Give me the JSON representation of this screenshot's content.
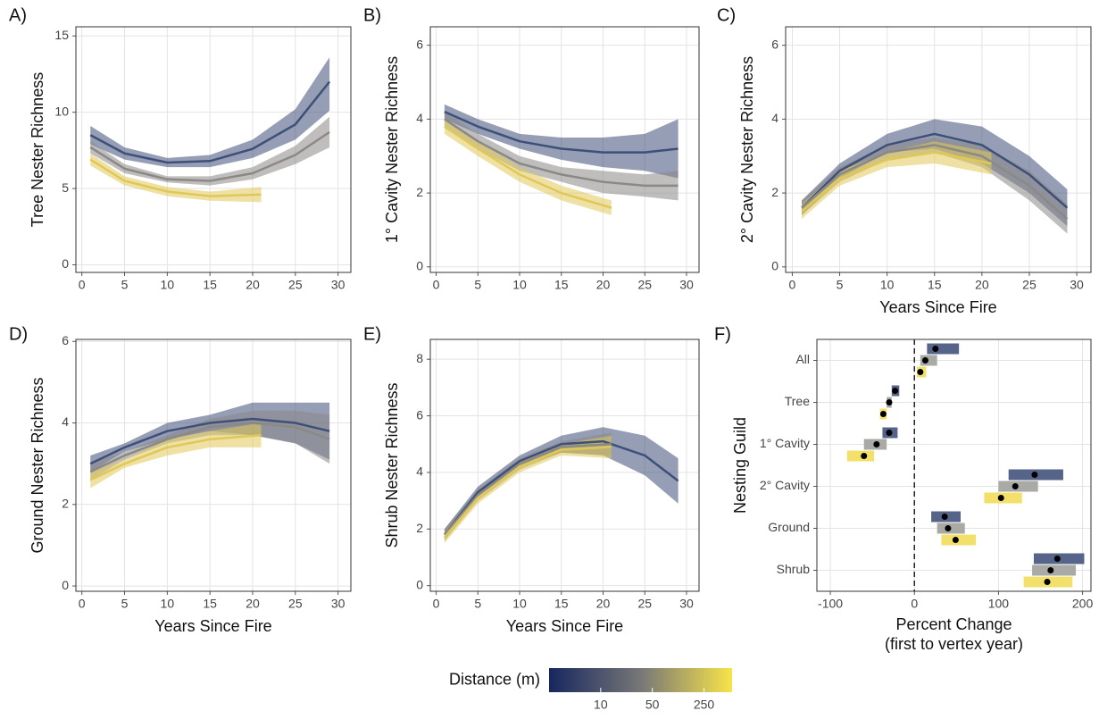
{
  "chart_data": [
    {
      "type": "line",
      "title": "A)",
      "ylabel": "Tree Nester Richness",
      "xlim": [
        -0.7,
        31.5
      ],
      "ylim": [
        -0.5,
        15.6
      ],
      "xticks": [
        0,
        5,
        10,
        15,
        20,
        25,
        30
      ],
      "yticks": [
        0,
        5,
        10,
        15
      ],
      "grid": true,
      "series": [
        {
          "color": "#3e4f78",
          "x": [
            1,
            5,
            10,
            15,
            20,
            25,
            29
          ],
          "values": [
            8.5,
            7.3,
            6.7,
            6.8,
            7.6,
            9.2,
            12.0
          ],
          "lower": [
            7.9,
            6.9,
            6.4,
            6.4,
            7.0,
            8.2,
            10.1
          ],
          "upper": [
            9.1,
            7.7,
            7.0,
            7.2,
            8.2,
            10.2,
            13.6
          ]
        },
        {
          "color": "#8a8986",
          "x": [
            1,
            5,
            10,
            15,
            20,
            25,
            29
          ],
          "values": [
            7.7,
            6.3,
            5.6,
            5.5,
            6.0,
            7.2,
            8.7
          ],
          "lower": [
            7.3,
            6.0,
            5.4,
            5.2,
            5.6,
            6.6,
            7.7
          ],
          "upper": [
            8.1,
            6.6,
            5.8,
            5.8,
            6.4,
            7.8,
            9.7
          ]
        },
        {
          "color": "#e0c858",
          "x": [
            1,
            5,
            10,
            15,
            21
          ],
          "values": [
            6.9,
            5.5,
            4.8,
            4.5,
            4.6
          ],
          "lower": [
            6.5,
            5.2,
            4.5,
            4.2,
            4.1
          ],
          "upper": [
            7.3,
            5.8,
            5.1,
            4.8,
            5.1
          ]
        }
      ]
    },
    {
      "type": "line",
      "title": "B)",
      "ylabel": "1° Cavity Nester Richness",
      "xlim": [
        -0.7,
        31.5
      ],
      "ylim": [
        -0.15,
        6.5
      ],
      "xticks": [
        0,
        5,
        10,
        15,
        20,
        25,
        30
      ],
      "yticks": [
        0,
        2,
        4,
        6
      ],
      "grid": true,
      "series": [
        {
          "color": "#3e4f78",
          "x": [
            1,
            5,
            10,
            15,
            20,
            25,
            29
          ],
          "values": [
            4.2,
            3.8,
            3.4,
            3.2,
            3.1,
            3.1,
            3.2
          ],
          "lower": [
            4.0,
            3.6,
            3.2,
            2.9,
            2.7,
            2.6,
            2.4
          ],
          "upper": [
            4.4,
            4.0,
            3.6,
            3.5,
            3.5,
            3.6,
            4.0
          ]
        },
        {
          "color": "#8a8986",
          "x": [
            1,
            5,
            10,
            15,
            20,
            25,
            29
          ],
          "values": [
            4.0,
            3.4,
            2.8,
            2.5,
            2.3,
            2.2,
            2.2
          ],
          "lower": [
            3.8,
            3.2,
            2.6,
            2.3,
            2.0,
            1.9,
            1.8
          ],
          "upper": [
            4.2,
            3.6,
            3.0,
            2.7,
            2.6,
            2.5,
            2.6
          ]
        },
        {
          "color": "#e0c858",
          "x": [
            1,
            5,
            10,
            15,
            21
          ],
          "values": [
            3.8,
            3.2,
            2.5,
            2.0,
            1.6
          ],
          "lower": [
            3.6,
            3.0,
            2.3,
            1.8,
            1.4
          ],
          "upper": [
            4.0,
            3.4,
            2.7,
            2.2,
            1.8
          ]
        }
      ]
    },
    {
      "type": "line",
      "title": "C)",
      "ylabel": "2° Cavity Nester Richness",
      "xlabel": "Years Since Fire",
      "xlim": [
        -0.7,
        31.5
      ],
      "ylim": [
        -0.15,
        6.5
      ],
      "xticks": [
        0,
        5,
        10,
        15,
        20,
        25,
        30
      ],
      "yticks": [
        0,
        2,
        4,
        6
      ],
      "grid": true,
      "series": [
        {
          "color": "#3e4f78",
          "x": [
            1,
            5,
            10,
            15,
            20,
            25,
            29
          ],
          "values": [
            1.6,
            2.6,
            3.3,
            3.6,
            3.3,
            2.5,
            1.6
          ],
          "lower": [
            1.4,
            2.4,
            3.1,
            3.2,
            2.8,
            2.0,
            1.1
          ],
          "upper": [
            1.8,
            2.8,
            3.6,
            4.0,
            3.8,
            3.0,
            2.1
          ]
        },
        {
          "color": "#8a8986",
          "x": [
            1,
            5,
            10,
            15,
            20,
            25,
            29
          ],
          "values": [
            1.6,
            2.5,
            3.1,
            3.3,
            3.0,
            2.2,
            1.3
          ],
          "lower": [
            1.4,
            2.3,
            2.9,
            3.1,
            2.7,
            1.8,
            0.9
          ],
          "upper": [
            1.8,
            2.7,
            3.3,
            3.5,
            3.3,
            2.6,
            1.7
          ]
        },
        {
          "color": "#e0c858",
          "x": [
            1,
            5,
            10,
            15,
            21
          ],
          "values": [
            1.5,
            2.4,
            2.9,
            3.1,
            2.8
          ],
          "lower": [
            1.3,
            2.2,
            2.7,
            2.8,
            2.5
          ],
          "upper": [
            1.7,
            2.6,
            3.1,
            3.4,
            3.1
          ]
        }
      ]
    },
    {
      "type": "line",
      "title": "D)",
      "ylabel": "Ground Nester Richness",
      "xlabel": "Years Since Fire",
      "xlim": [
        -0.7,
        31.5
      ],
      "ylim": [
        -0.13,
        6.05
      ],
      "xticks": [
        0,
        5,
        10,
        15,
        20,
        25,
        30
      ],
      "yticks": [
        0,
        2,
        4,
        6
      ],
      "grid": true,
      "series": [
        {
          "color": "#3e4f78",
          "x": [
            1,
            5,
            10,
            15,
            20,
            25,
            29
          ],
          "values": [
            3.0,
            3.4,
            3.8,
            4.0,
            4.1,
            4.0,
            3.8
          ],
          "lower": [
            2.8,
            3.3,
            3.6,
            3.8,
            3.7,
            3.5,
            3.1
          ],
          "upper": [
            3.2,
            3.5,
            4.0,
            4.2,
            4.5,
            4.5,
            4.5
          ]
        },
        {
          "color": "#8a8986",
          "x": [
            1,
            5,
            10,
            15,
            20,
            25,
            29
          ],
          "values": [
            2.8,
            3.2,
            3.6,
            3.9,
            4.0,
            3.9,
            3.6
          ],
          "lower": [
            2.6,
            3.1,
            3.5,
            3.7,
            3.7,
            3.5,
            3.0
          ],
          "upper": [
            3.0,
            3.3,
            3.7,
            4.1,
            4.3,
            4.3,
            4.2
          ]
        },
        {
          "color": "#e0c858",
          "x": [
            1,
            5,
            10,
            15,
            21
          ],
          "values": [
            2.6,
            3.0,
            3.4,
            3.6,
            3.7
          ],
          "lower": [
            2.4,
            2.9,
            3.2,
            3.4,
            3.4
          ],
          "upper": [
            2.8,
            3.1,
            3.6,
            3.8,
            4.0
          ]
        }
      ]
    },
    {
      "type": "line",
      "title": "E)",
      "ylabel": "Shrub Nester Richness",
      "xlabel": "Years Since Fire",
      "xlim": [
        -0.7,
        31.5
      ],
      "ylim": [
        -0.2,
        8.7
      ],
      "xticks": [
        0,
        5,
        10,
        15,
        20,
        25,
        30
      ],
      "yticks": [
        0,
        2,
        4,
        6,
        8
      ],
      "grid": true,
      "series": [
        {
          "color": "#3e4f78",
          "x": [
            1,
            5,
            10,
            15,
            20,
            25,
            29
          ],
          "values": [
            1.8,
            3.3,
            4.4,
            5.0,
            5.1,
            4.6,
            3.7
          ],
          "lower": [
            1.6,
            3.1,
            4.2,
            4.7,
            4.6,
            3.9,
            2.9
          ],
          "upper": [
            2.0,
            3.5,
            4.6,
            5.3,
            5.6,
            5.3,
            4.5
          ]
        },
        {
          "color": "#8a8986",
          "x": [
            1,
            5,
            10,
            15,
            21
          ],
          "values": [
            1.8,
            3.2,
            4.3,
            4.9,
            5.0
          ],
          "lower": [
            1.6,
            3.0,
            4.1,
            4.7,
            4.6
          ],
          "upper": [
            2.0,
            3.4,
            4.5,
            5.1,
            5.4
          ]
        },
        {
          "color": "#e0c858",
          "x": [
            1,
            5,
            10,
            15,
            21
          ],
          "values": [
            1.7,
            3.1,
            4.2,
            4.8,
            4.9
          ],
          "lower": [
            1.5,
            2.9,
            4.0,
            4.6,
            4.5
          ],
          "upper": [
            1.9,
            3.3,
            4.4,
            5.0,
            5.3
          ]
        }
      ]
    },
    {
      "type": "interval",
      "title": "F)",
      "ylabel": "Nesting Guild",
      "xlabel": [
        "Percent Change",
        "(first to vertex year)"
      ],
      "xlim": [
        -116,
        210
      ],
      "xticks": [
        -100,
        0,
        100,
        200
      ],
      "vline": 0,
      "grid": true,
      "categories": [
        "All",
        "Tree",
        "1° Cavity",
        "2° Cavity",
        "Ground",
        "Shrub"
      ],
      "series": [
        {
          "color": "#56648a",
          "values": [
            25,
            -23,
            -30,
            143,
            36,
            170
          ],
          "lower": [
            15,
            -27,
            -38,
            112,
            20,
            142
          ],
          "upper": [
            53,
            -18,
            -20,
            177,
            55,
            202
          ]
        },
        {
          "color": "#a9a9a6",
          "values": [
            13,
            -30,
            -45,
            120,
            40,
            162
          ],
          "lower": [
            7,
            -33,
            -60,
            100,
            27,
            140
          ],
          "upper": [
            27,
            -27,
            -33,
            147,
            60,
            192
          ]
        },
        {
          "color": "#f2e06a",
          "values": [
            7,
            -37,
            -60,
            103,
            49,
            158
          ],
          "lower": [
            3,
            -41,
            -80,
            83,
            32,
            130
          ],
          "upper": [
            14,
            -33,
            -48,
            128,
            73,
            188
          ]
        }
      ]
    }
  ],
  "colorbar": {
    "title": "Distance (m)",
    "log": true,
    "lim": [
      2,
      600
    ],
    "ticks": [
      10,
      50,
      250
    ],
    "colors": [
      "#17275e",
      "#777777",
      "#f8e448"
    ]
  }
}
